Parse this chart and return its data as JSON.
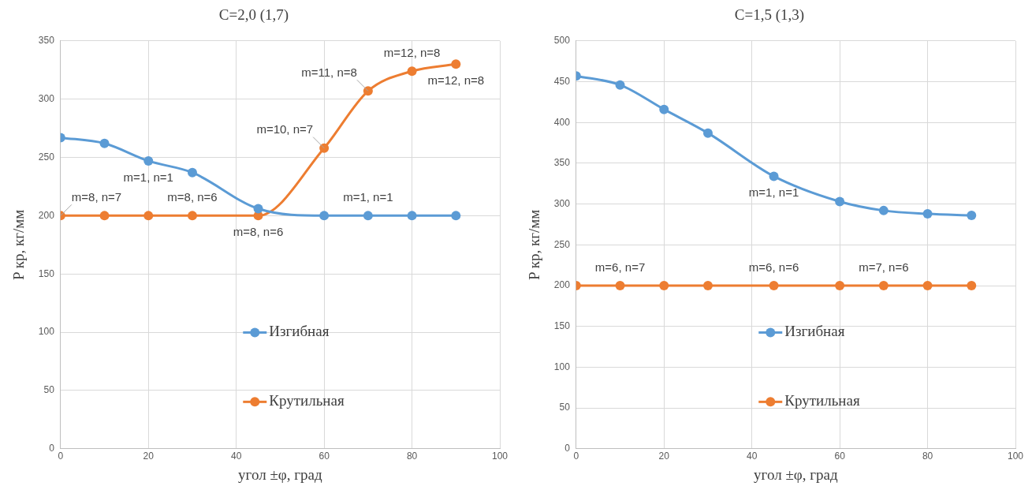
{
  "chart_data": [
    {
      "type": "line",
      "title": "C=2,0 (1,7)",
      "xlabel": "угол ±φ, град",
      "ylabel": "P кр, кг/мм",
      "xlim": [
        0,
        100
      ],
      "xticks": [
        0,
        20,
        40,
        60,
        80,
        100
      ],
      "ylim": [
        0,
        350
      ],
      "yticks": [
        0,
        50,
        100,
        150,
        200,
        250,
        300,
        350
      ],
      "grid": true,
      "legend": "bottom",
      "marker": "circle",
      "series": [
        {
          "name": "Изгибная",
          "color": "#5b9bd5",
          "x": [
            0,
            10,
            20,
            30,
            45,
            60,
            70,
            80,
            90
          ],
          "values": [
            267,
            262,
            247,
            237,
            206,
            200,
            200,
            200,
            200
          ]
        },
        {
          "name": "Крутильная",
          "color": "#ed7d31",
          "x": [
            0,
            10,
            20,
            30,
            45,
            60,
            70,
            80,
            90
          ],
          "values": [
            200,
            200,
            200,
            200,
            200,
            258,
            307,
            324,
            330
          ]
        }
      ],
      "annotations": [
        {
          "text": "m=8, n=7",
          "x": 0,
          "y": 200
        },
        {
          "text": "m=1, n=1",
          "x": 20,
          "y": 247
        },
        {
          "text": "m=8, n=6",
          "x": 30,
          "y": 200
        },
        {
          "text": "m=8, n=6",
          "x": 45,
          "y": 200
        },
        {
          "text": "m=1, n=1",
          "x": 70,
          "y": 200
        },
        {
          "text": "m=10, n=7",
          "x": 60,
          "y": 258
        },
        {
          "text": "m=11, n=8",
          "x": 70,
          "y": 307
        },
        {
          "text": "m=12, n=8",
          "x": 80,
          "y": 324
        },
        {
          "text": "m=12, n=8",
          "x": 90,
          "y": 330
        }
      ]
    },
    {
      "type": "line",
      "title": "C=1,5 (1,3)",
      "xlabel": "угол ±φ, град",
      "ylabel": "P кр, кг/мм",
      "xlim": [
        0,
        100
      ],
      "xticks": [
        0,
        20,
        40,
        60,
        80,
        100
      ],
      "ylim": [
        0,
        500
      ],
      "yticks": [
        0,
        50,
        100,
        150,
        200,
        250,
        300,
        350,
        400,
        450,
        500
      ],
      "grid": true,
      "legend": "bottom",
      "marker": "circle",
      "series": [
        {
          "name": "Изгибная",
          "color": "#5b9bd5",
          "x": [
            0,
            10,
            20,
            30,
            45,
            60,
            70,
            80,
            90
          ],
          "values": [
            457,
            446,
            416,
            387,
            334,
            303,
            292,
            288,
            286
          ]
        },
        {
          "name": "Крутильная",
          "color": "#ed7d31",
          "x": [
            0,
            10,
            20,
            30,
            45,
            60,
            70,
            80,
            90
          ],
          "values": [
            200,
            200,
            200,
            200,
            200,
            200,
            200,
            200,
            200
          ]
        }
      ],
      "annotations": [
        {
          "text": "m=1, n=1",
          "x": 45,
          "y": 334
        },
        {
          "text": "m=6, n=7",
          "x": 10,
          "y": 200
        },
        {
          "text": "m=6, n=6",
          "x": 45,
          "y": 200
        },
        {
          "text": "m=7, n=6",
          "x": 70,
          "y": 200
        }
      ]
    }
  ]
}
